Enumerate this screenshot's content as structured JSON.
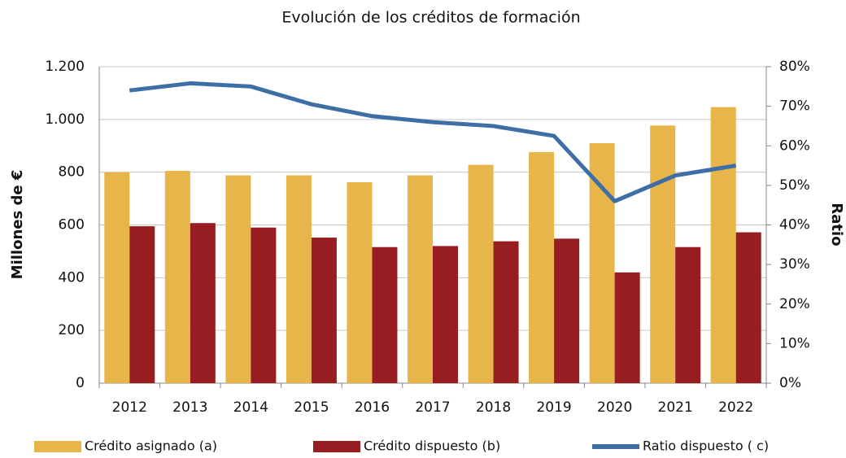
{
  "chart_data": {
    "type": "bar",
    "title": "Evolución de los créditos de formación",
    "y_label": "Millones de €",
    "y2_label": "Ratio",
    "categories": [
      "2012",
      "2013",
      "2014",
      "2015",
      "2016",
      "2017",
      "2018",
      "2019",
      "2020",
      "2021",
      "2022"
    ],
    "series": [
      {
        "name": "Crédito asignado (a)",
        "color": "#e8b54a",
        "values": [
          800,
          805,
          788,
          788,
          762,
          788,
          828,
          876,
          910,
          977,
          1047
        ]
      },
      {
        "name": "Crédito dispuesto (b)",
        "color": "#981d20",
        "values": [
          595,
          607,
          590,
          552,
          516,
          520,
          538,
          548,
          420,
          516,
          572
        ]
      },
      {
        "name": "Ratio dispuesto  ( c)",
        "color": "#3d6ea5",
        "axis": "y2",
        "type": "line",
        "values": [
          74,
          75.8,
          75,
          70.5,
          67.5,
          66,
          65,
          62.5,
          46,
          52.5,
          55
        ]
      }
    ],
    "ylim": [
      0,
      1200
    ],
    "yticks": [
      0,
      200,
      400,
      600,
      800,
      {
        "value": 1000,
        "label": "1.000"
      },
      {
        "value": 1200,
        "label": "1.200"
      }
    ],
    "y2lim": [
      0,
      80
    ],
    "y2ticks": [
      {
        "value": 0,
        "label": "0%"
      },
      {
        "value": 10,
        "label": "10%"
      },
      {
        "value": 20,
        "label": "20%"
      },
      {
        "value": 30,
        "label": "30%"
      },
      {
        "value": 40,
        "label": "40%"
      },
      {
        "value": 50,
        "label": "50%"
      },
      {
        "value": 60,
        "label": "60%"
      },
      {
        "value": 70,
        "label": "70%"
      },
      {
        "value": 80,
        "label": "80%"
      }
    ],
    "grid": true
  }
}
